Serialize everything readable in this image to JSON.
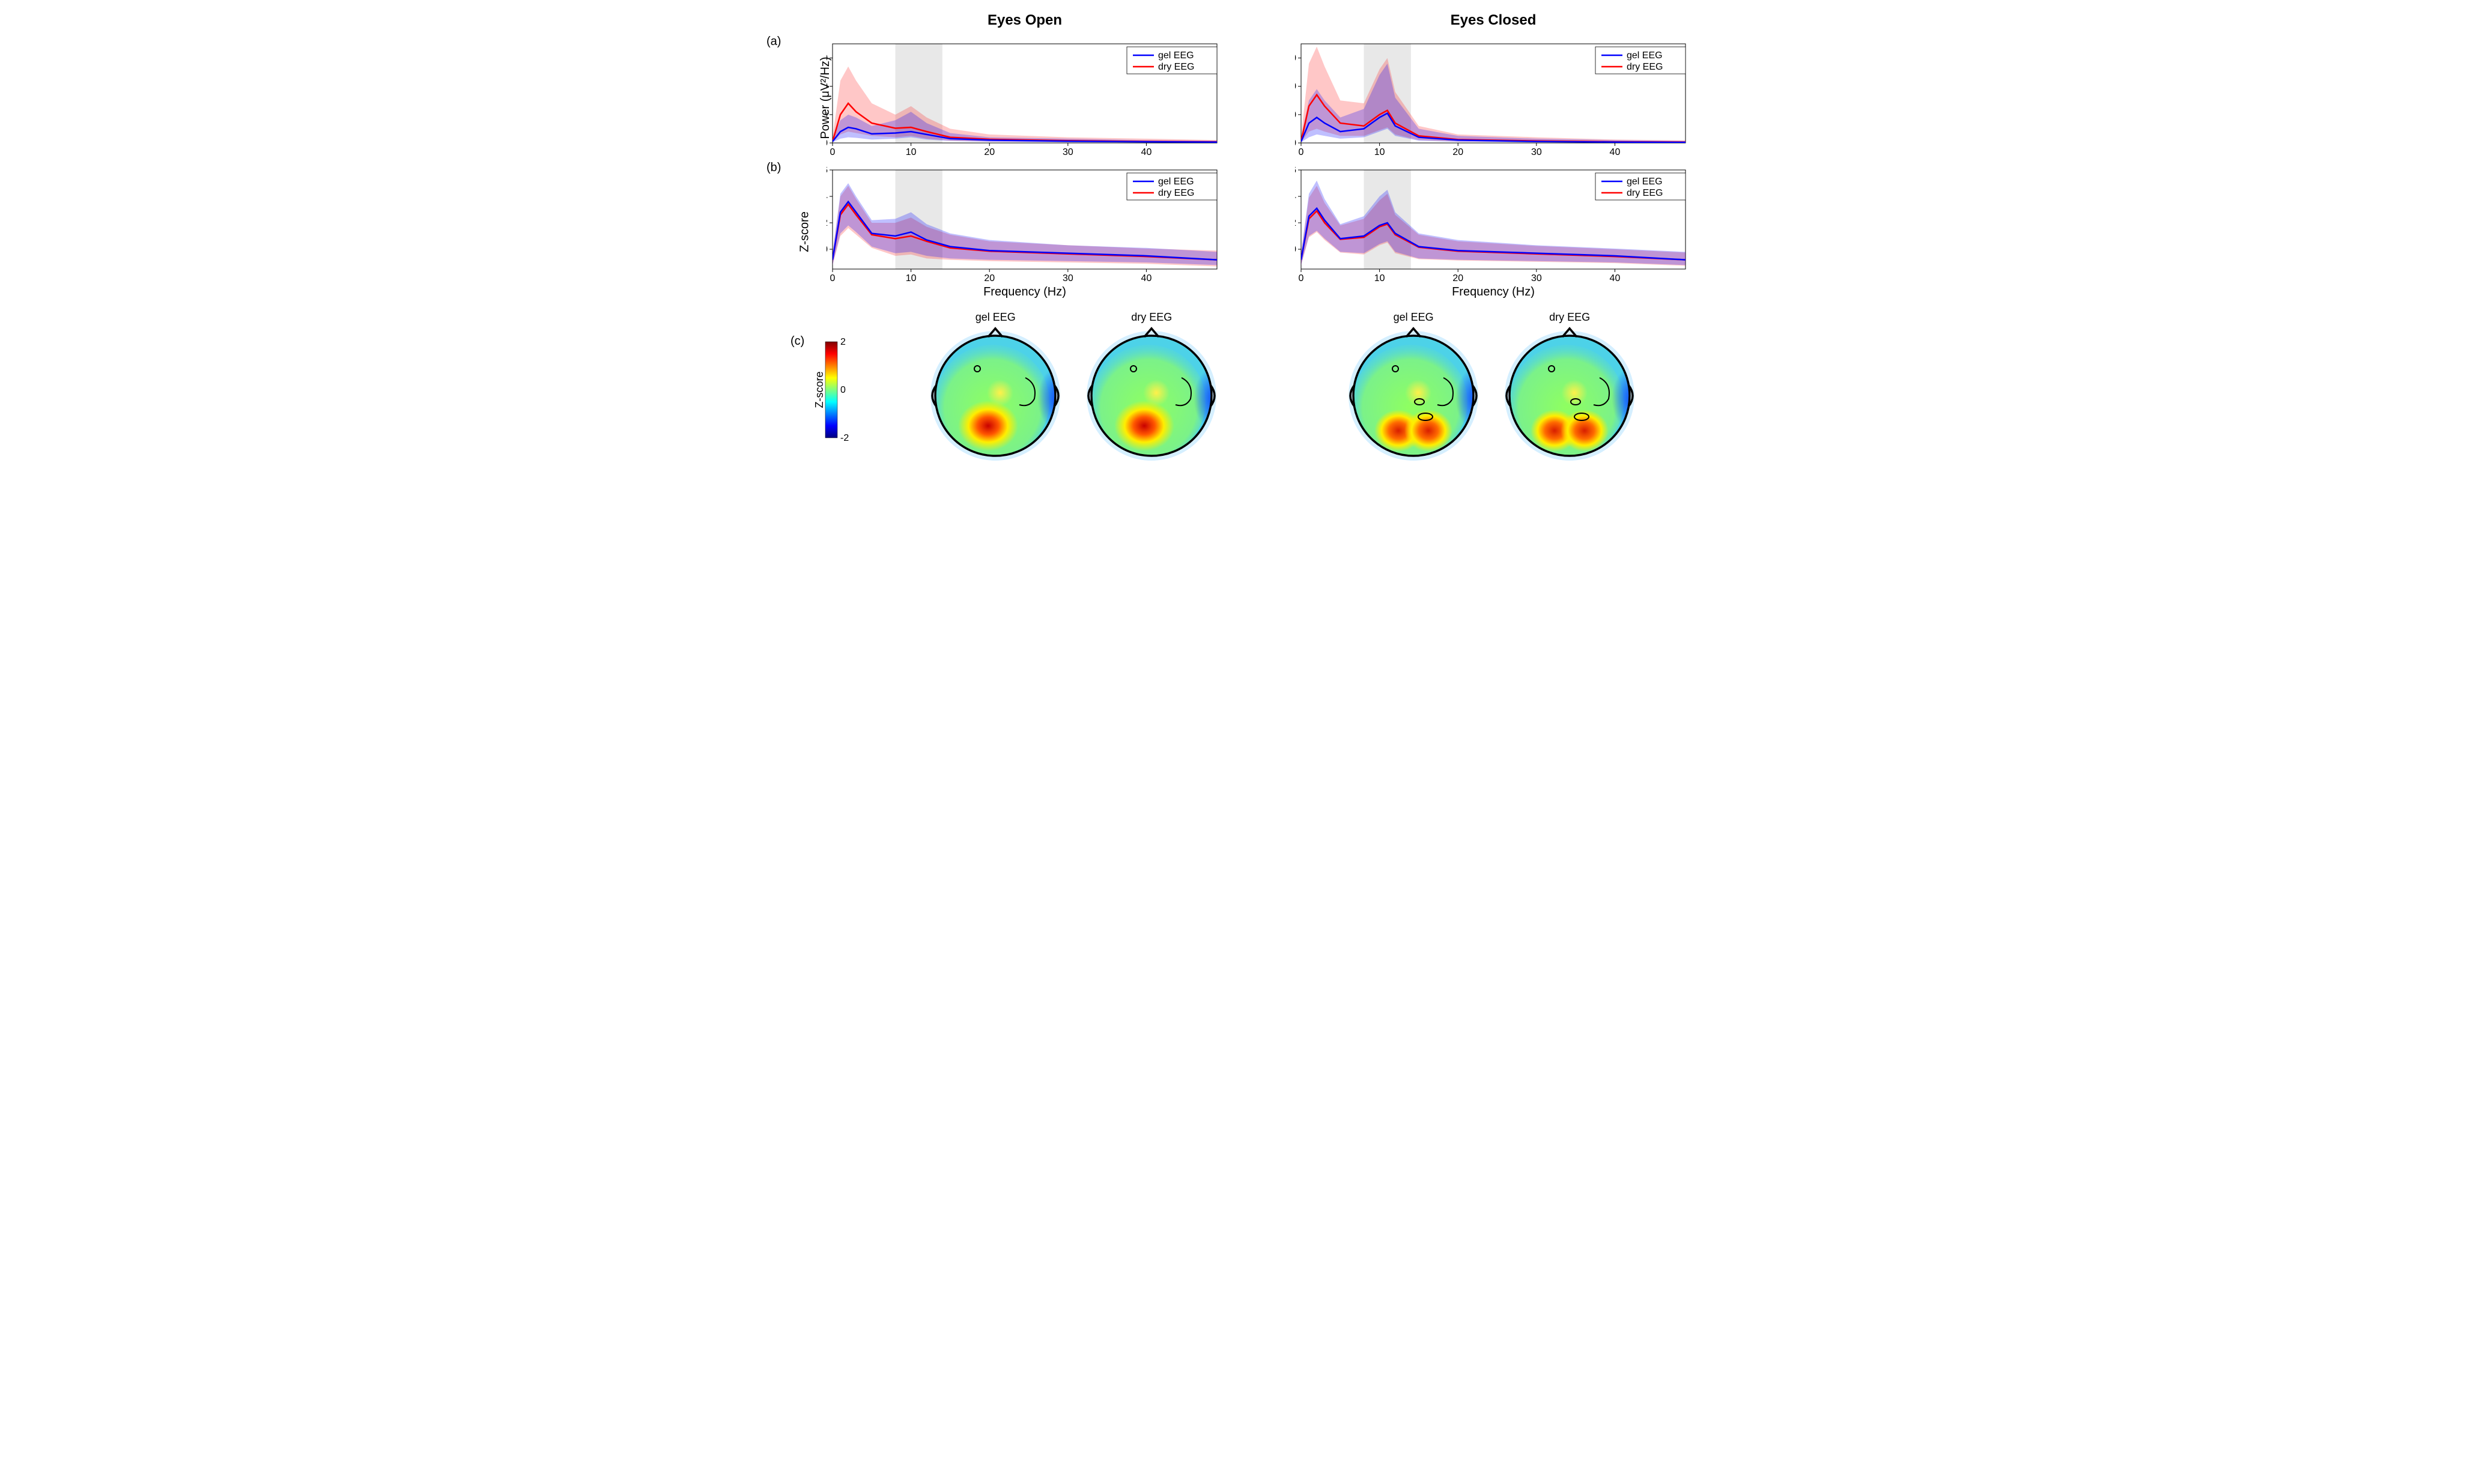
{
  "columns": {
    "left_title": "Eyes Open",
    "right_title": "Eyes Closed"
  },
  "labels": {
    "a": "(a)",
    "b": "(b)",
    "c": "(c)"
  },
  "axis": {
    "ylabel_power": "Power (μV²/Hz)",
    "ylabel_z": "Z-score",
    "xlabel": "Frequency (Hz)",
    "cb_label": "Z-score"
  },
  "legend": {
    "gel": "gel EEG",
    "dry": "dry EEG"
  },
  "colors": {
    "gel_line": "#0000ff",
    "dry_line": "#ff0000",
    "gel_fill": "rgba(0,0,255,0.25)",
    "dry_fill": "rgba(255,0,0,0.22)",
    "alpha_band": "#e8e8e8",
    "grid": "#ffffff",
    "bg": "#ffffff"
  },
  "line_width": 2.5,
  "alpha_band": {
    "xmin": 8,
    "xmax": 14
  },
  "charts": {
    "power": {
      "xlim": [
        0,
        49
      ],
      "ylim": [
        0,
        35
      ],
      "xticks": [
        0,
        10,
        20,
        30,
        40
      ],
      "yticks": [
        0,
        10,
        20,
        30
      ],
      "eo": {
        "gel": {
          "x": [
            0,
            1,
            2,
            3,
            5,
            8,
            10,
            12,
            15,
            20,
            30,
            40,
            49
          ],
          "y": [
            0.5,
            4,
            5.5,
            5,
            3.2,
            3.5,
            4,
            3,
            1.5,
            1,
            0.6,
            0.4,
            0.3
          ],
          "lo": [
            0.2,
            1.5,
            2,
            1.8,
            1.2,
            1.5,
            2,
            1.2,
            0.7,
            0.4,
            0.2,
            0.15,
            0.1
          ],
          "hi": [
            1.5,
            8,
            10,
            9,
            6,
            8,
            11,
            7,
            3.5,
            2,
            1.5,
            1,
            0.8
          ]
        },
        "dry": {
          "x": [
            0,
            1,
            2,
            3,
            5,
            8,
            10,
            12,
            15,
            20,
            30,
            40,
            49
          ],
          "y": [
            0.5,
            10,
            14,
            11,
            7,
            5.2,
            5.5,
            4,
            2,
            1.3,
            0.8,
            0.5,
            0.4
          ],
          "lo": [
            0.2,
            3,
            4,
            3.5,
            2.5,
            2,
            2.5,
            1.5,
            0.8,
            0.5,
            0.3,
            0.2,
            0.15
          ],
          "hi": [
            2,
            22,
            27,
            22,
            14,
            10,
            13,
            9,
            5,
            3,
            2,
            1.5,
            1
          ]
        }
      },
      "ec": {
        "gel": {
          "x": [
            0,
            1,
            2,
            3,
            5,
            8,
            10,
            11,
            12,
            15,
            20,
            30,
            40,
            49
          ],
          "y": [
            0.5,
            7,
            9,
            7,
            4,
            5,
            9,
            10.5,
            6,
            2,
            1,
            0.5,
            0.3,
            0.2
          ],
          "lo": [
            0.2,
            2,
            3,
            2.5,
            1.5,
            2,
            4,
            5,
            2.5,
            0.8,
            0.4,
            0.2,
            0.1,
            0.1
          ],
          "hi": [
            2,
            15,
            19,
            15,
            9,
            12,
            24,
            28,
            16,
            5,
            2.5,
            1.5,
            1,
            0.7
          ]
        },
        "dry": {
          "x": [
            0,
            1,
            2,
            3,
            5,
            8,
            10,
            11,
            12,
            15,
            20,
            30,
            40,
            49
          ],
          "y": [
            0.5,
            13,
            17,
            13,
            7,
            6,
            10,
            11.5,
            7,
            2.5,
            1.2,
            0.7,
            0.4,
            0.3
          ],
          "lo": [
            0.2,
            4,
            5,
            4,
            2.5,
            2.5,
            4.5,
            5.5,
            3,
            1,
            0.5,
            0.3,
            0.15,
            0.1
          ],
          "hi": [
            2,
            28,
            34,
            27,
            15,
            14,
            26,
            30,
            18,
            6,
            3,
            2,
            1.2,
            0.9
          ]
        }
      }
    },
    "zscore": {
      "xlim": [
        0,
        49
      ],
      "ylim": [
        -1.5,
        6
      ],
      "xticks": [
        0,
        10,
        20,
        30,
        40
      ],
      "yticks": [
        0,
        2,
        4,
        6
      ],
      "eo": {
        "gel": {
          "x": [
            0,
            1,
            2,
            3,
            5,
            8,
            10,
            12,
            15,
            20,
            30,
            40,
            49
          ],
          "y": [
            -0.8,
            2.8,
            3.6,
            2.8,
            1.2,
            1,
            1.3,
            0.7,
            0.2,
            -0.1,
            -0.3,
            -0.5,
            -0.8
          ],
          "lo": [
            -1.2,
            1.2,
            1.8,
            1.3,
            0.2,
            -0.3,
            -0.2,
            -0.5,
            -0.7,
            -0.8,
            -0.9,
            -1,
            -1.2
          ],
          "hi": [
            -0.3,
            4.2,
            5,
            4,
            2.2,
            2.3,
            2.8,
            1.9,
            1.2,
            0.7,
            0.3,
            0.1,
            -0.2
          ]
        },
        "dry": {
          "x": [
            0,
            1,
            2,
            3,
            5,
            8,
            10,
            12,
            15,
            20,
            30,
            40,
            49
          ],
          "y": [
            -0.8,
            2.6,
            3.4,
            2.6,
            1.1,
            0.8,
            1.0,
            0.6,
            0.1,
            -0.15,
            -0.35,
            -0.55,
            -0.8
          ],
          "lo": [
            -1.2,
            1.0,
            1.6,
            1.1,
            0.1,
            -0.5,
            -0.4,
            -0.7,
            -0.8,
            -0.9,
            -1,
            -1.1,
            -1.3
          ],
          "hi": [
            -0.3,
            4.0,
            4.8,
            3.8,
            2.0,
            2.0,
            2.4,
            1.7,
            1.1,
            0.6,
            0.3,
            0.05,
            -0.1
          ]
        }
      },
      "ec": {
        "gel": {
          "x": [
            0,
            1,
            2,
            3,
            5,
            8,
            10,
            11,
            12,
            15,
            20,
            30,
            40,
            49
          ],
          "y": [
            -0.8,
            2.5,
            3.1,
            2.2,
            0.8,
            1.0,
            1.8,
            2,
            1.2,
            0.2,
            -0.1,
            -0.3,
            -0.5,
            -0.8
          ],
          "lo": [
            -1.2,
            1.0,
            1.4,
            0.8,
            -0.2,
            -0.3,
            0.4,
            0.6,
            -0.2,
            -0.7,
            -0.8,
            -0.9,
            -1,
            -1.2
          ],
          "hi": [
            -0.3,
            4.2,
            5.2,
            3.8,
            1.9,
            2.5,
            4,
            4.5,
            2.8,
            1.2,
            0.7,
            0.3,
            0.05,
            -0.2
          ]
        },
        "dry": {
          "x": [
            0,
            1,
            2,
            3,
            5,
            8,
            10,
            11,
            12,
            15,
            20,
            30,
            40,
            49
          ],
          "y": [
            -0.8,
            2.3,
            2.9,
            2.0,
            0.75,
            0.9,
            1.7,
            1.9,
            1.1,
            0.15,
            -0.15,
            -0.35,
            -0.55,
            -0.8
          ],
          "lo": [
            -1.2,
            0.9,
            1.3,
            0.7,
            -0.25,
            -0.4,
            0.3,
            0.5,
            -0.3,
            -0.75,
            -0.85,
            -0.95,
            -1.05,
            -1.25
          ],
          "hi": [
            -0.3,
            3.9,
            4.8,
            3.5,
            1.8,
            2.3,
            3.7,
            4.2,
            2.6,
            1.1,
            0.6,
            0.25,
            0,
            -0.25
          ]
        }
      }
    }
  },
  "topomaps": {
    "titles": {
      "gel": "gel EEG",
      "dry": "dry EEG"
    },
    "colorbar": {
      "min": -2,
      "max": 2,
      "ticks": [
        -2,
        0,
        2
      ]
    },
    "jet_stops": [
      {
        "p": 0,
        "c": "#00007f"
      },
      {
        "p": 0.125,
        "c": "#0000ff"
      },
      {
        "p": 0.25,
        "c": "#007fff"
      },
      {
        "p": 0.375,
        "c": "#00ffff"
      },
      {
        "p": 0.5,
        "c": "#7fff7f"
      },
      {
        "p": 0.625,
        "c": "#ffff00"
      },
      {
        "p": 0.75,
        "c": "#ff7f00"
      },
      {
        "p": 0.875,
        "c": "#ff0000"
      },
      {
        "p": 1,
        "c": "#7f0000"
      }
    ],
    "eo_pattern": "posterior_central",
    "ec_pattern": "posterior_bilateral"
  }
}
